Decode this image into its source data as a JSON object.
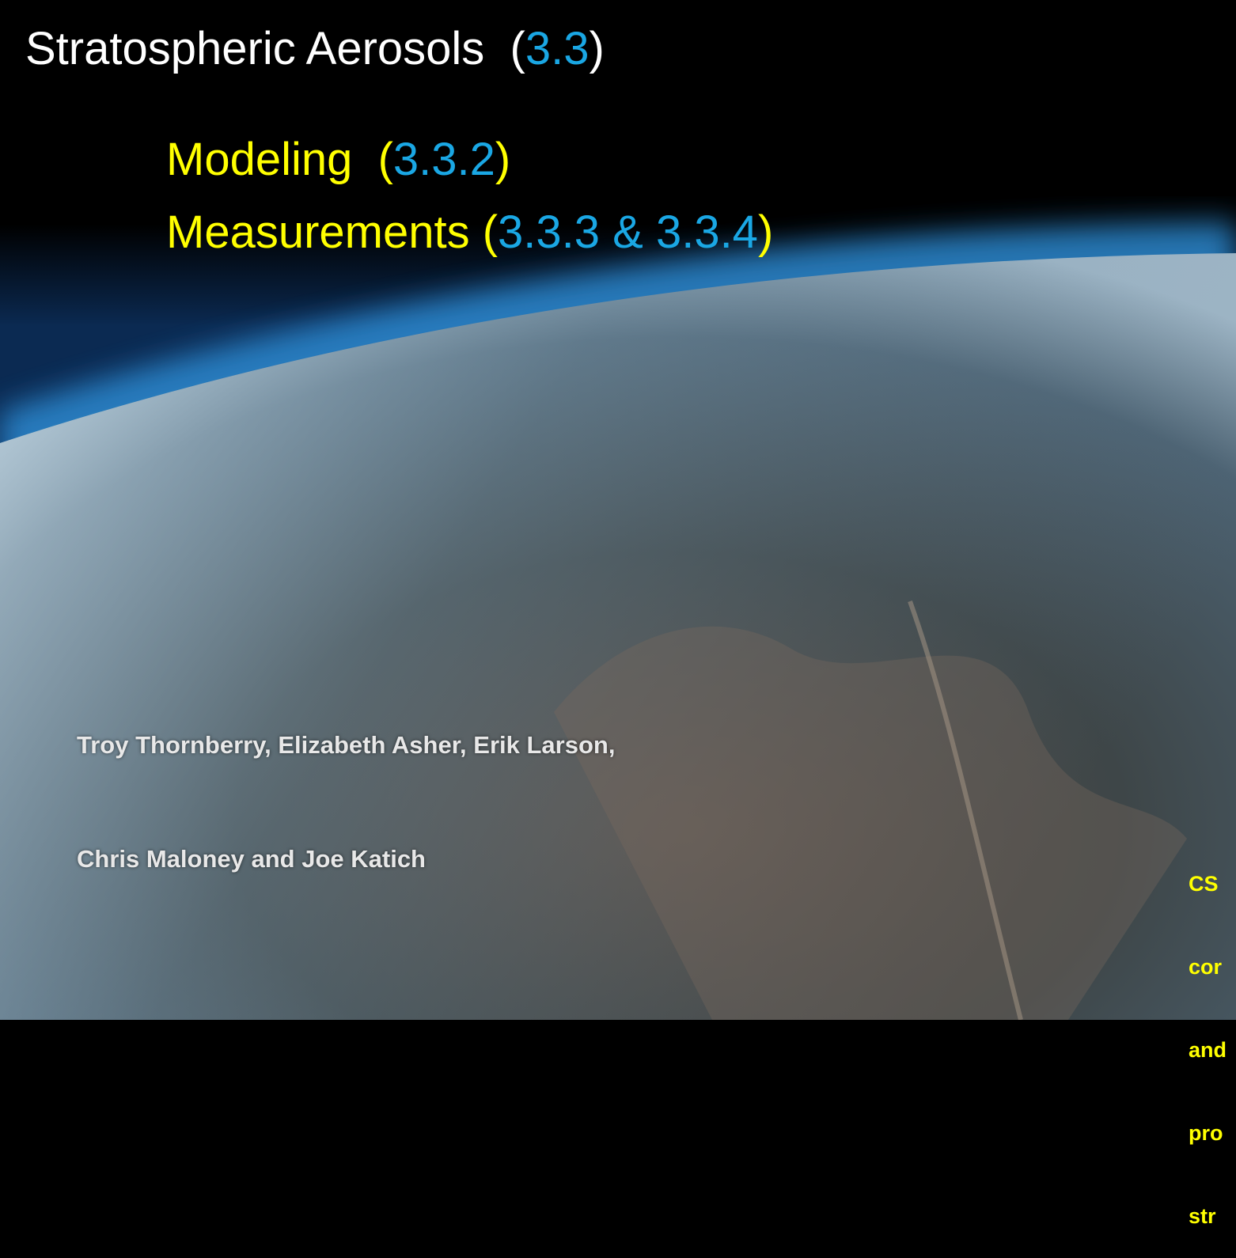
{
  "title": [
    "Stratospheric Aerosols  (",
    "3.3",
    ")"
  ],
  "subtitles": [
    [
      "Modeling  (",
      "3.3.2",
      ")"
    ],
    [
      "Measurements (",
      "3.3.3 & 3.3.4",
      ")"
    ]
  ],
  "authors": [
    "Troy Thornberry, Elizabeth Asher, Erik Larson,",
    "Chris Maloney and Joe Katich"
  ],
  "side_note": [
    "CS",
    "cor",
    "and",
    "pro",
    "str"
  ]
}
